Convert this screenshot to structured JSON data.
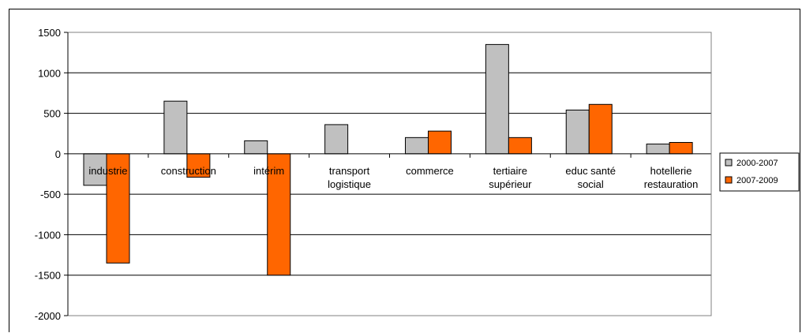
{
  "title_text": "",
  "chart_data": {
    "type": "bar",
    "categories": [
      [
        "industrie"
      ],
      [
        "construction"
      ],
      [
        "intérim"
      ],
      [
        "transport",
        "logistique"
      ],
      [
        "commerce"
      ],
      [
        "tertiaire",
        "supérieur"
      ],
      [
        "educ santé",
        "social"
      ],
      [
        "hotellerie",
        "restauration"
      ]
    ],
    "series": [
      {
        "name": "2000-2007",
        "color": "#c0c0c0",
        "values": [
          -390,
          650,
          160,
          360,
          200,
          1350,
          540,
          120
        ]
      },
      {
        "name": "2007-2009",
        "color": "#ff6600",
        "values": [
          -1350,
          -290,
          -1500,
          0,
          280,
          200,
          610,
          140
        ]
      }
    ],
    "yticks": [
      1500,
      1000,
      500,
      0,
      -500,
      -1000,
      -1500,
      -2000
    ],
    "ylim": [
      -2000,
      1500
    ],
    "grid": true,
    "legend": "right"
  }
}
